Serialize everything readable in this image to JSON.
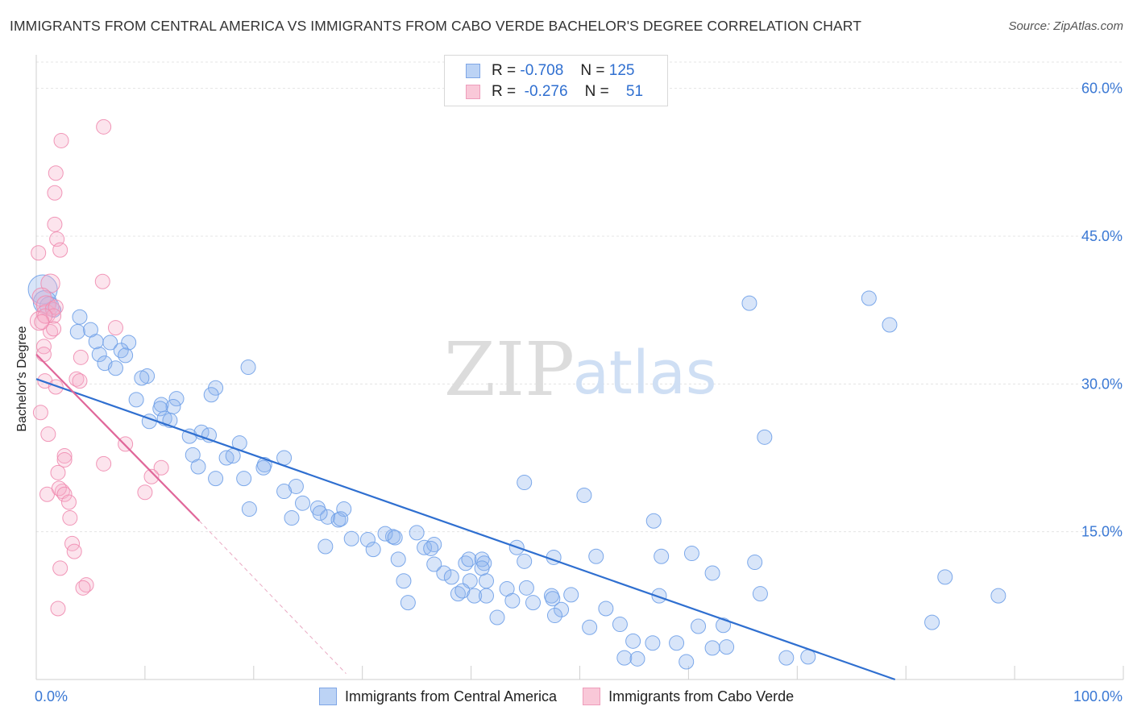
{
  "title": "IMMIGRANTS FROM CENTRAL AMERICA VS IMMIGRANTS FROM CABO VERDE BACHELOR'S DEGREE CORRELATION CHART",
  "source": "Source: ZipAtlas.com",
  "watermark": {
    "zip": "ZIP",
    "atlas": "atlas"
  },
  "legend": {
    "rows": [
      {
        "r_label": "R =",
        "r_value": "-0.708",
        "n_label": "N =",
        "n_value": "125"
      },
      {
        "r_label": "R =",
        "r_value": "-0.276",
        "n_label": "N =",
        "n_value": "51"
      }
    ]
  },
  "chart_data": {
    "type": "scatter",
    "xlabel": "",
    "ylabel": "Bachelor's Degree",
    "xlim": [
      0,
      100
    ],
    "ylim": [
      0,
      63
    ],
    "x_tick_labels": [
      "0.0%",
      "100.0%"
    ],
    "y_ticks": [
      15,
      30,
      45,
      60
    ],
    "y_tick_labels": [
      "15.0%",
      "30.0%",
      "45.0%",
      "60.0%"
    ],
    "grid": true,
    "legend_position": "bottom-center",
    "colors": {
      "blue": "#6fa0e8",
      "pink": "#f08cb0",
      "blue_line": "#2f6fd0",
      "pink_line": "#e0679a",
      "tick_label": "#3a78d4"
    },
    "series": [
      {
        "name": "Immigrants from Central America",
        "color": "#6fa0e8",
        "trend": {
          "x": [
            0,
            79
          ],
          "y": [
            30.5,
            0
          ]
        },
        "points": [
          [
            0.6,
            39.6,
            2.0
          ],
          [
            0.8,
            38.3,
            1.6
          ],
          [
            1.2,
            37.9,
            1.3
          ],
          [
            1.6,
            37.5,
            1.0
          ],
          [
            4.0,
            36.8,
            1.0
          ],
          [
            5.0,
            35.5,
            1.0
          ],
          [
            3.8,
            35.3,
            1.0
          ],
          [
            5.5,
            34.3,
            1.0
          ],
          [
            6.8,
            34.2,
            1.0
          ],
          [
            8.5,
            34.2,
            1.0
          ],
          [
            5.8,
            33.0,
            1.0
          ],
          [
            7.8,
            33.4,
            1.0
          ],
          [
            8.2,
            32.9,
            1.0
          ],
          [
            6.3,
            32.1,
            1.0
          ],
          [
            7.3,
            31.6,
            1.0
          ],
          [
            10.2,
            30.8,
            1.0
          ],
          [
            9.7,
            30.6,
            1.0
          ],
          [
            19.5,
            31.7,
            1.0
          ],
          [
            9.2,
            28.4,
            1.0
          ],
          [
            11.5,
            27.9,
            1.0
          ],
          [
            12.9,
            28.5,
            1.0
          ],
          [
            12.6,
            27.7,
            1.0
          ],
          [
            16.5,
            29.6,
            1.0
          ],
          [
            16.1,
            28.9,
            1.0
          ],
          [
            11.4,
            27.5,
            1.0
          ],
          [
            10.4,
            26.2,
            1.0
          ],
          [
            11.8,
            26.5,
            1.0
          ],
          [
            12.3,
            26.3,
            1.0
          ],
          [
            14.1,
            24.7,
            1.0
          ],
          [
            15.2,
            25.1,
            1.0
          ],
          [
            15.9,
            24.8,
            1.0
          ],
          [
            14.4,
            22.8,
            1.0
          ],
          [
            17.5,
            22.5,
            1.0
          ],
          [
            18.7,
            24.0,
            1.0
          ],
          [
            18.1,
            22.7,
            1.0
          ],
          [
            22.8,
            22.5,
            1.0
          ],
          [
            21.0,
            21.8,
            1.0
          ],
          [
            14.9,
            21.6,
            1.0
          ],
          [
            16.5,
            20.4,
            1.0
          ],
          [
            20.9,
            21.5,
            1.0
          ],
          [
            19.1,
            20.4,
            1.0
          ],
          [
            23.9,
            19.6,
            1.0
          ],
          [
            22.8,
            19.1,
            1.0
          ],
          [
            24.5,
            17.9,
            1.0
          ],
          [
            19.6,
            17.3,
            1.0
          ],
          [
            25.9,
            17.4,
            1.0
          ],
          [
            26.8,
            16.5,
            1.0
          ],
          [
            23.5,
            16.4,
            1.0
          ],
          [
            27.8,
            16.2,
            1.0
          ],
          [
            28.3,
            17.3,
            1.0
          ],
          [
            26.1,
            16.9,
            1.0
          ],
          [
            28.0,
            16.3,
            1.0
          ],
          [
            29.0,
            14.3,
            1.0
          ],
          [
            30.5,
            14.2,
            1.0
          ],
          [
            32.8,
            14.5,
            1.0
          ],
          [
            32.1,
            14.8,
            1.0
          ],
          [
            33.0,
            14.4,
            1.0
          ],
          [
            35.0,
            14.9,
            1.0
          ],
          [
            26.6,
            13.5,
            1.0
          ],
          [
            31.0,
            13.2,
            1.0
          ],
          [
            35.7,
            13.4,
            1.0
          ],
          [
            36.6,
            13.7,
            1.0
          ],
          [
            36.3,
            13.3,
            1.0
          ],
          [
            33.3,
            12.2,
            1.0
          ],
          [
            36.6,
            11.7,
            1.0
          ],
          [
            37.5,
            10.8,
            1.0
          ],
          [
            38.2,
            10.4,
            1.0
          ],
          [
            39.5,
            11.8,
            1.0
          ],
          [
            39.8,
            12.2,
            1.0
          ],
          [
            41.0,
            12.2,
            1.0
          ],
          [
            41.2,
            11.8,
            1.0
          ],
          [
            41.0,
            11.3,
            1.0
          ],
          [
            39.9,
            10.0,
            1.0
          ],
          [
            38.8,
            8.7,
            1.0
          ],
          [
            39.2,
            9.0,
            1.0
          ],
          [
            41.4,
            10.0,
            1.0
          ],
          [
            33.8,
            10.0,
            1.0
          ],
          [
            34.2,
            7.8,
            1.0
          ],
          [
            40.3,
            8.5,
            1.0
          ],
          [
            41.4,
            8.5,
            1.0
          ],
          [
            44.2,
            13.4,
            1.0
          ],
          [
            44.9,
            12.0,
            1.0
          ],
          [
            47.6,
            12.4,
            1.0
          ],
          [
            43.3,
            9.2,
            1.0
          ],
          [
            45.1,
            9.3,
            1.0
          ],
          [
            47.4,
            8.5,
            1.0
          ],
          [
            45.7,
            7.8,
            1.0
          ],
          [
            47.5,
            8.2,
            1.0
          ],
          [
            48.3,
            7.1,
            1.0
          ],
          [
            47.7,
            6.5,
            1.0
          ],
          [
            49.2,
            8.6,
            1.0
          ],
          [
            52.4,
            7.2,
            1.0
          ],
          [
            42.4,
            6.3,
            1.0
          ],
          [
            43.8,
            8.0,
            1.0
          ],
          [
            50.9,
            5.3,
            1.0
          ],
          [
            53.7,
            5.6,
            1.0
          ],
          [
            44.9,
            20.0,
            1.0
          ],
          [
            50.4,
            18.7,
            1.0
          ],
          [
            51.5,
            12.5,
            1.0
          ],
          [
            54.9,
            3.9,
            1.0
          ],
          [
            56.7,
            3.7,
            1.0
          ],
          [
            58.9,
            3.7,
            1.0
          ],
          [
            54.1,
            2.2,
            1.0
          ],
          [
            55.3,
            2.1,
            1.0
          ],
          [
            56.8,
            16.1,
            1.0
          ],
          [
            57.3,
            8.5,
            1.0
          ],
          [
            57.5,
            12.5,
            1.0
          ],
          [
            60.3,
            12.8,
            1.0
          ],
          [
            60.9,
            5.4,
            1.0
          ],
          [
            62.2,
            3.2,
            1.0
          ],
          [
            63.2,
            5.5,
            1.0
          ],
          [
            62.2,
            10.8,
            1.0
          ],
          [
            59.8,
            1.8,
            1.0
          ],
          [
            63.5,
            3.3,
            1.0
          ],
          [
            65.6,
            38.2,
            1.0
          ],
          [
            66.1,
            11.9,
            1.0
          ],
          [
            66.6,
            8.7,
            1.0
          ],
          [
            67.0,
            24.6,
            1.0
          ],
          [
            69.0,
            2.2,
            1.0
          ],
          [
            71.0,
            2.3,
            1.0
          ],
          [
            76.6,
            38.7,
            1.0
          ],
          [
            78.5,
            36.0,
            1.0
          ],
          [
            82.4,
            5.8,
            1.0
          ],
          [
            83.6,
            10.4,
            1.0
          ],
          [
            88.5,
            8.5,
            1.0
          ]
        ]
      },
      {
        "name": "Immigrants from Cabo Verde",
        "color": "#f08cb0",
        "trend": {
          "x": [
            0,
            15
          ],
          "y": [
            33.0,
            16.1
          ]
        },
        "trend_extension": {
          "x": [
            15,
            28.5
          ],
          "y": [
            16.1,
            0.6
          ]
        },
        "points": [
          [
            1.3,
            40.2,
            1.3
          ],
          [
            0.5,
            38.8,
            1.3
          ],
          [
            0.9,
            38.0,
            1.3
          ],
          [
            0.9,
            37.1,
            1.3
          ],
          [
            0.3,
            36.4,
            1.3
          ],
          [
            1.5,
            37.6,
            1.0
          ],
          [
            1.8,
            37.8,
            1.0
          ],
          [
            1.3,
            35.3,
            1.0
          ],
          [
            0.2,
            43.3,
            1.0
          ],
          [
            1.7,
            49.4,
            1.0
          ],
          [
            1.8,
            51.4,
            1.0
          ],
          [
            2.3,
            54.7,
            1.0
          ],
          [
            6.2,
            56.1,
            1.0
          ],
          [
            1.7,
            46.2,
            1.0
          ],
          [
            1.9,
            44.7,
            1.0
          ],
          [
            2.2,
            43.6,
            1.0
          ],
          [
            6.1,
            40.4,
            1.0
          ],
          [
            1.6,
            36.9,
            1.0
          ],
          [
            1.6,
            35.6,
            1.0
          ],
          [
            7.3,
            35.7,
            1.0
          ],
          [
            0.7,
            33.8,
            1.0
          ],
          [
            0.7,
            33.0,
            1.0
          ],
          [
            4.1,
            32.7,
            1.0
          ],
          [
            0.8,
            30.3,
            1.0
          ],
          [
            3.7,
            30.5,
            1.0
          ],
          [
            1.8,
            29.7,
            1.0
          ],
          [
            4.0,
            30.3,
            1.0
          ],
          [
            0.4,
            27.1,
            1.0
          ],
          [
            1.1,
            24.9,
            1.0
          ],
          [
            8.2,
            23.9,
            1.0
          ],
          [
            2.6,
            22.7,
            1.0
          ],
          [
            2.6,
            22.3,
            1.0
          ],
          [
            6.2,
            21.9,
            1.0
          ],
          [
            11.5,
            21.5,
            1.0
          ],
          [
            10.6,
            20.6,
            1.0
          ],
          [
            2.0,
            21.0,
            1.0
          ],
          [
            1.0,
            18.8,
            1.0
          ],
          [
            2.4,
            19.1,
            1.0
          ],
          [
            2.1,
            19.4,
            1.0
          ],
          [
            2.6,
            18.8,
            1.0
          ],
          [
            3.0,
            18.0,
            1.0
          ],
          [
            10.0,
            19.0,
            1.0
          ],
          [
            3.1,
            16.4,
            1.0
          ],
          [
            3.3,
            13.8,
            1.0
          ],
          [
            3.5,
            13.0,
            1.0
          ],
          [
            2.2,
            11.3,
            1.0
          ],
          [
            4.6,
            9.6,
            1.0
          ],
          [
            4.3,
            9.3,
            1.0
          ],
          [
            2.0,
            7.2,
            1.0
          ],
          [
            0.8,
            36.9,
            1.0
          ],
          [
            0.5,
            36.3,
            1.0
          ]
        ]
      }
    ]
  }
}
